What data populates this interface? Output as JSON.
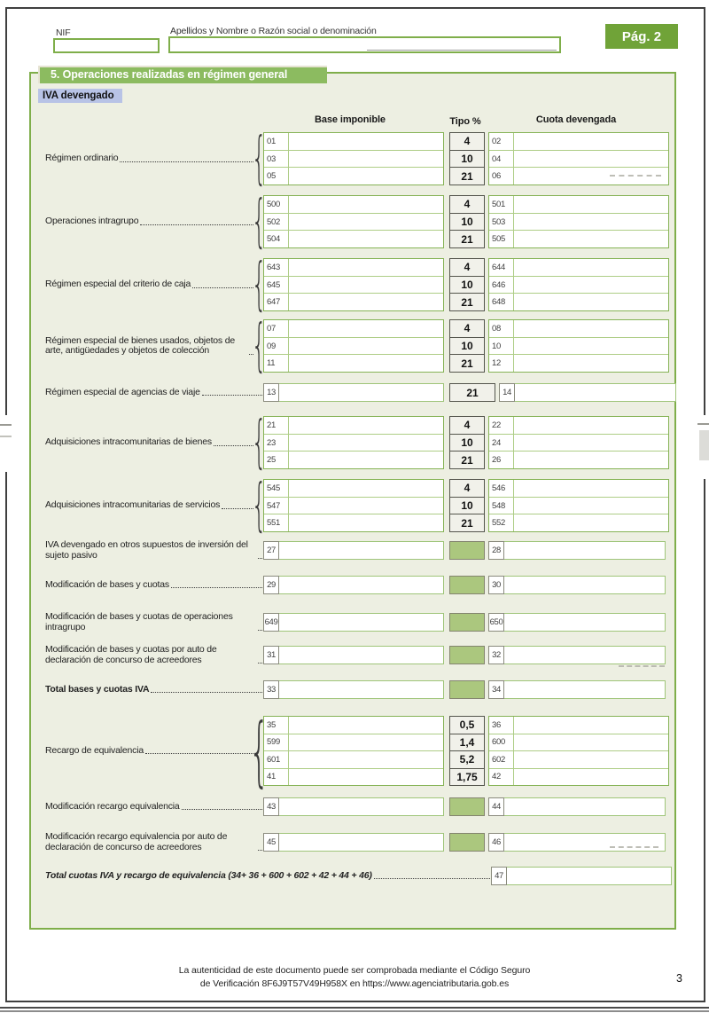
{
  "header": {
    "nif_label": "NIF",
    "name_label": "Apellidos y Nombre o Razón social o denominación",
    "page_badge": "Pág. 2"
  },
  "section": {
    "title": "5. Operaciones realizadas en régimen general",
    "subtitle": "IVA devengado"
  },
  "columns": {
    "base": "Base imponible",
    "tipo": "Tipo %",
    "cuota": "Cuota devengada"
  },
  "colors": {
    "accent_green": "#70a338",
    "bar_green": "#8cbb60",
    "panel_bg": "#edefe2",
    "green_fill_box": "#abc77e",
    "iva_label_bg": "#b8c3e6"
  },
  "groups": [
    {
      "id": "regimen-ordinario",
      "label": "Régimen ordinario",
      "type": "multi",
      "rows": [
        {
          "base": "01",
          "tipo": "4",
          "cuota": "02"
        },
        {
          "base": "03",
          "tipo": "10",
          "cuota": "04"
        },
        {
          "base": "05",
          "tipo": "21",
          "cuota": "06"
        }
      ]
    },
    {
      "id": "operaciones-intragrupo",
      "label": "Operaciones intragrupo",
      "type": "multi",
      "rows": [
        {
          "base": "500",
          "tipo": "4",
          "cuota": "501"
        },
        {
          "base": "502",
          "tipo": "10",
          "cuota": "503"
        },
        {
          "base": "504",
          "tipo": "21",
          "cuota": "505"
        }
      ]
    },
    {
      "id": "criterio-de-caja",
      "label": "Régimen especial del criterio de caja",
      "type": "multi",
      "rows": [
        {
          "base": "643",
          "tipo": "4",
          "cuota": "644"
        },
        {
          "base": "645",
          "tipo": "10",
          "cuota": "646"
        },
        {
          "base": "647",
          "tipo": "21",
          "cuota": "648"
        }
      ]
    },
    {
      "id": "bienes-usados",
      "label": "Régimen especial de bienes usados, objetos de arte, antigüedades y objetos de colección",
      "type": "multi",
      "rows": [
        {
          "base": "07",
          "tipo": "4",
          "cuota": "08"
        },
        {
          "base": "09",
          "tipo": "10",
          "cuota": "10"
        },
        {
          "base": "11",
          "tipo": "21",
          "cuota": "12"
        }
      ]
    },
    {
      "id": "agencias-de-viaje",
      "label": "Régimen especial de agencias de viaje",
      "type": "single",
      "tipo_style": "rate",
      "rows": [
        {
          "base": "13",
          "tipo": "21",
          "cuota": "14"
        }
      ]
    },
    {
      "id": "adq-intracomunitarias-bienes",
      "label": "Adquisiciones intracomunitarias de bienes",
      "type": "multi",
      "rows": [
        {
          "base": "21",
          "tipo": "4",
          "cuota": "22"
        },
        {
          "base": "23",
          "tipo": "10",
          "cuota": "24"
        },
        {
          "base": "25",
          "tipo": "21",
          "cuota": "26"
        }
      ]
    },
    {
      "id": "adq-intracomunitarias-servicios",
      "label": "Adquisiciones intracomunitarias de servicios",
      "type": "multi",
      "rows": [
        {
          "base": "545",
          "tipo": "4",
          "cuota": "546"
        },
        {
          "base": "547",
          "tipo": "10",
          "cuota": "548"
        },
        {
          "base": "551",
          "tipo": "21",
          "cuota": "552"
        }
      ]
    },
    {
      "id": "inversion-sujeto-pasivo",
      "label": "IVA devengado en otros supuestos de inversión del sujeto pasivo",
      "type": "single",
      "tipo_style": "green",
      "rows": [
        {
          "base": "27",
          "tipo": "",
          "cuota": "28"
        }
      ]
    },
    {
      "id": "modificacion-bases-cuotas",
      "label": "Modificación de bases y cuotas",
      "type": "single",
      "tipo_style": "green",
      "rows": [
        {
          "base": "29",
          "tipo": "",
          "cuota": "30"
        }
      ]
    },
    {
      "id": "modificacion-intragrupo",
      "label": "Modificación de bases y cuotas de operaciones intragrupo",
      "type": "single",
      "tipo_style": "green",
      "rows": [
        {
          "base": "649",
          "tipo": "",
          "cuota": "650"
        }
      ]
    },
    {
      "id": "modificacion-concurso",
      "label": "Modificación de bases y cuotas por auto de declaración de concurso de acreedores",
      "type": "single",
      "tipo_style": "green",
      "rows": [
        {
          "base": "31",
          "tipo": "",
          "cuota": "32"
        }
      ]
    },
    {
      "id": "total-bases-cuotas-iva",
      "label": "Total bases y cuotas IVA",
      "type": "single",
      "tipo_style": "green",
      "bold": true,
      "rows": [
        {
          "base": "33",
          "tipo": "",
          "cuota": "34"
        }
      ]
    },
    {
      "id": "recargo-de-equivalencia",
      "label": "Recargo de equivalencia",
      "type": "multi",
      "rows": [
        {
          "base": "35",
          "tipo": "0,5",
          "cuota": "36"
        },
        {
          "base": "599",
          "tipo": "1,4",
          "cuota": "600"
        },
        {
          "base": "601",
          "tipo": "5,2",
          "cuota": "602"
        },
        {
          "base": "41",
          "tipo": "1,75",
          "cuota": "42"
        }
      ]
    },
    {
      "id": "modificacion-recargo",
      "label": "Modificación recargo equivalencia",
      "type": "single",
      "tipo_style": "green",
      "rows": [
        {
          "base": "43",
          "tipo": "",
          "cuota": "44"
        }
      ]
    },
    {
      "id": "modificacion-recargo-concurso",
      "label": "Modificación recargo equivalencia por auto de declaración de concurso de acreedores",
      "type": "single",
      "tipo_style": "green",
      "rows": [
        {
          "base": "45",
          "tipo": "",
          "cuota": "46"
        }
      ]
    },
    {
      "id": "total-cuotas-iva-recargo",
      "label": "Total cuotas IVA y recargo de equivalencia (34+ 36 + 600 + 602 + 42 + 44 + 46)",
      "type": "total",
      "bold": true,
      "italic": true,
      "rows": [
        {
          "cuota": "47"
        }
      ]
    }
  ],
  "footer": {
    "line1": "La autenticidad de este documento puede ser comprobada mediante el Código Seguro",
    "line2": "de Verificación 8F6J9T57V49H958X en https://www.agenciatributaria.gob.es",
    "page_number": "3"
  }
}
